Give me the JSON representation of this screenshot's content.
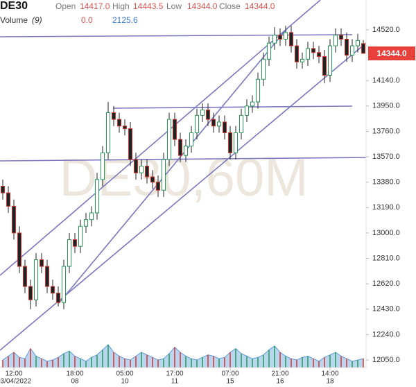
{
  "header": {
    "symbol": "DE30",
    "open_label": "Open",
    "open": "14417.0",
    "high_label": "High",
    "high": "14443.5",
    "low_label": "Low",
    "low": "14344.0",
    "close_label": "Close",
    "close": "14344.0",
    "volume_label": "Volume",
    "volume_period": "(9)",
    "volume_value_1": "0.0",
    "volume_value_2": "2125.6"
  },
  "watermark": "DE30,60M",
  "price_tag": "14344.0",
  "chart_data": {
    "type": "candlestick",
    "categories": [
      null,
      null,
      "12:00",
      null,
      null,
      null,
      null,
      null,
      null,
      null,
      null,
      null,
      null,
      "18:00",
      null,
      null,
      null,
      null,
      null,
      null,
      null,
      null,
      "05:00",
      null,
      null,
      null,
      null,
      null,
      null,
      null,
      null,
      "17:00",
      null,
      null,
      null,
      null,
      null,
      null,
      null,
      null,
      null,
      "07:00",
      null,
      null,
      null,
      null,
      null,
      null,
      null,
      null,
      "21:00",
      null,
      null,
      null,
      null,
      null,
      null,
      null,
      null,
      "14:00",
      null,
      null,
      null,
      null,
      null,
      null
    ],
    "category_dates": [
      null,
      null,
      "03/04/2022",
      null,
      null,
      null,
      null,
      null,
      null,
      null,
      null,
      null,
      null,
      "08",
      null,
      null,
      null,
      null,
      null,
      null,
      null,
      null,
      "10",
      null,
      null,
      null,
      null,
      null,
      null,
      null,
      null,
      "11",
      null,
      null,
      null,
      null,
      null,
      null,
      null,
      null,
      null,
      "15",
      null,
      null,
      null,
      null,
      null,
      null,
      null,
      null,
      "16",
      null,
      null,
      null,
      null,
      null,
      null,
      null,
      null,
      "18",
      null,
      null,
      null,
      null,
      null,
      null
    ],
    "open": [
      13350,
      13300,
      13200,
      13000,
      12750,
      12600,
      12500,
      12800,
      12750,
      12600,
      12550,
      12480,
      12750,
      12950,
      12900,
      13050,
      13100,
      13150,
      13400,
      13600,
      13900,
      13850,
      13800,
      13780,
      13550,
      13450,
      13500,
      13420,
      13380,
      13320,
      13550,
      13850,
      13700,
      13580,
      13650,
      13750,
      13880,
      13920,
      13850,
      13800,
      13830,
      13750,
      13600,
      13750,
      13880,
      13950,
      13980,
      14150,
      14300,
      14420,
      14480,
      14450,
      14500,
      14400,
      14280,
      14300,
      14380,
      14350,
      14320,
      14180,
      14400,
      14480,
      14450,
      14330,
      14400,
      14417
    ],
    "high": [
      13400,
      13350,
      13250,
      13050,
      12800,
      12650,
      12850,
      12850,
      12800,
      12650,
      12600,
      12800,
      13000,
      13000,
      13100,
      13150,
      13200,
      13450,
      13650,
      13980,
      13950,
      13900,
      13850,
      13830,
      13600,
      13550,
      13550,
      13470,
      13430,
      13600,
      13900,
      13900,
      13750,
      13700,
      13800,
      13930,
      13970,
      13970,
      13900,
      13880,
      13880,
      13800,
      13800,
      13930,
      14000,
      14030,
      14200,
      14350,
      14470,
      14540,
      14530,
      14550,
      14550,
      14450,
      14350,
      14430,
      14430,
      14400,
      14370,
      14450,
      14530,
      14530,
      14500,
      14450,
      14490,
      14443.5
    ],
    "low": [
      13250,
      13150,
      12950,
      12700,
      12550,
      12430,
      12450,
      12700,
      12550,
      12500,
      12450,
      12430,
      12700,
      12850,
      12850,
      13000,
      13050,
      13100,
      13350,
      13550,
      13800,
      13750,
      13730,
      13500,
      13400,
      13400,
      13370,
      13330,
      13270,
      13270,
      13500,
      13650,
      13530,
      13530,
      13600,
      13700,
      13830,
      13800,
      13750,
      13750,
      13700,
      13550,
      13550,
      13700,
      13830,
      13900,
      13930,
      14100,
      14250,
      14370,
      14400,
      14400,
      14350,
      14230,
      14230,
      14250,
      14300,
      14270,
      14120,
      14130,
      14350,
      14400,
      14280,
      14280,
      14350,
      14344
    ],
    "close": [
      13300,
      13200,
      13000,
      12750,
      12600,
      12500,
      12800,
      12750,
      12600,
      12550,
      12480,
      12750,
      12950,
      12900,
      13050,
      13100,
      13150,
      13400,
      13600,
      13900,
      13850,
      13800,
      13780,
      13550,
      13450,
      13500,
      13420,
      13380,
      13320,
      13550,
      13850,
      13700,
      13580,
      13650,
      13750,
      13880,
      13920,
      13850,
      13800,
      13830,
      13750,
      13600,
      13750,
      13880,
      13950,
      13980,
      14150,
      14300,
      14420,
      14480,
      14450,
      14500,
      14400,
      14280,
      14300,
      14380,
      14350,
      14320,
      14180,
      14400,
      14480,
      14450,
      14330,
      14400,
      14440,
      14344
    ],
    "volume": [
      600,
      900,
      1200,
      800,
      700,
      1500,
      900,
      700,
      500,
      600,
      800,
      1100,
      1300,
      900,
      700,
      500,
      800,
      1000,
      1400,
      1800,
      1200,
      900,
      700,
      600,
      900,
      1200,
      1000,
      800,
      600,
      700,
      1100,
      1600,
      1200,
      900,
      700,
      600,
      800,
      1000,
      900,
      700,
      800,
      1200,
      1500,
      1100,
      900,
      700,
      800,
      1000,
      1400,
      1700,
      1200,
      900,
      700,
      600,
      800,
      900,
      700,
      500,
      800,
      1000,
      1200,
      900,
      700,
      500,
      600,
      700
    ],
    "volume_lim": [
      0,
      3000
    ],
    "up_color": "#1f9d55",
    "down_color": "#d9322b",
    "volume_area_color": "#9cc3ea",
    "ylim": [
      11993,
      14743
    ],
    "yticks": [
      {
        "value": 14520,
        "label": "14520.0"
      },
      {
        "value": 14140,
        "label": "14140.0"
      },
      {
        "value": 13950,
        "label": "13950.0"
      },
      {
        "value": 13760,
        "label": "13760.0"
      },
      {
        "value": 13570,
        "label": "13570.0"
      },
      {
        "value": 13380,
        "label": "13380.0"
      },
      {
        "value": 13190,
        "label": "13190.0"
      },
      {
        "value": 13000,
        "label": "13000.0"
      },
      {
        "value": 12810,
        "label": "12810.0"
      },
      {
        "value": 12620,
        "label": "12620.0"
      },
      {
        "value": 12430,
        "label": "12430.0"
      },
      {
        "value": 12240,
        "label": "12240.0"
      },
      {
        "value": 12050,
        "label": "12050.0"
      }
    ],
    "grid": false
  }
}
